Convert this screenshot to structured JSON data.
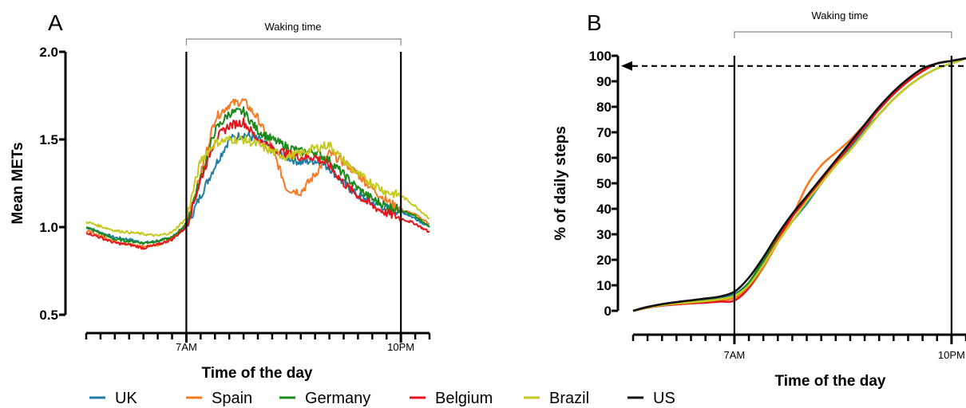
{
  "chart_data": [
    {
      "panel": "A",
      "type": "line",
      "ylabel": "Mean METs",
      "xlabel": "Time of the day",
      "ylim": [
        0.5,
        2.0
      ],
      "yticks": [
        0.5,
        1.0,
        1.5,
        2.0
      ],
      "ytick_labels": [
        "0.5",
        "1.0",
        "1.5",
        "2.0"
      ],
      "xlim": [
        0,
        24
      ],
      "xticks": [
        7,
        22
      ],
      "xtick_labels": [
        "7AM",
        "10PM"
      ],
      "vlines": [
        7,
        22
      ],
      "bracket_label": "Waking time",
      "x": [
        0,
        2,
        3,
        4,
        5,
        6,
        7,
        8,
        9,
        10,
        11,
        12,
        13,
        14,
        15,
        16,
        17,
        18,
        19,
        20,
        21,
        22,
        23,
        24
      ],
      "series": [
        {
          "name": "UK",
          "color": "#1f7fa8",
          "values": [
            1.0,
            0.94,
            0.93,
            0.91,
            0.92,
            0.94,
            1.0,
            1.18,
            1.35,
            1.5,
            1.53,
            1.5,
            1.44,
            1.4,
            1.37,
            1.38,
            1.34,
            1.25,
            1.18,
            1.14,
            1.11,
            1.09,
            1.05,
            1.0
          ]
        },
        {
          "name": "Spain",
          "color": "#f57a22",
          "values": [
            0.98,
            0.92,
            0.9,
            0.89,
            0.9,
            0.93,
            1.02,
            1.3,
            1.62,
            1.7,
            1.72,
            1.62,
            1.45,
            1.22,
            1.2,
            1.3,
            1.42,
            1.37,
            1.3,
            1.22,
            1.15,
            1.1,
            1.07,
            1.02
          ]
        },
        {
          "name": "Germany",
          "color": "#1a8a1a",
          "values": [
            1.0,
            0.93,
            0.92,
            0.91,
            0.92,
            0.94,
            1.02,
            1.28,
            1.55,
            1.65,
            1.66,
            1.55,
            1.5,
            1.46,
            1.43,
            1.43,
            1.38,
            1.3,
            1.22,
            1.16,
            1.12,
            1.1,
            1.06,
            1.0
          ]
        },
        {
          "name": "Belgium",
          "color": "#e8141b",
          "values": [
            0.97,
            0.91,
            0.9,
            0.88,
            0.9,
            0.93,
            1.0,
            1.27,
            1.5,
            1.58,
            1.6,
            1.5,
            1.45,
            1.42,
            1.4,
            1.4,
            1.35,
            1.25,
            1.18,
            1.12,
            1.08,
            1.05,
            1.02,
            0.97
          ]
        },
        {
          "name": "Brazil",
          "color": "#c5c91e",
          "values": [
            1.03,
            0.98,
            0.97,
            0.96,
            0.95,
            0.97,
            1.05,
            1.38,
            1.48,
            1.5,
            1.5,
            1.47,
            1.43,
            1.4,
            1.42,
            1.45,
            1.47,
            1.38,
            1.3,
            1.25,
            1.2,
            1.18,
            1.12,
            1.05
          ]
        }
      ]
    },
    {
      "panel": "B",
      "type": "line",
      "ylabel": "% of daily steps",
      "xlabel": "Time of the day",
      "ylim": [
        0,
        100
      ],
      "yticks": [
        0,
        10,
        20,
        30,
        40,
        50,
        60,
        70,
        80,
        90,
        100
      ],
      "ytick_labels": [
        "0",
        "10",
        "20",
        "30",
        "40",
        "50",
        "60",
        "70",
        "80",
        "90",
        "100"
      ],
      "xlim": [
        0,
        23
      ],
      "xticks": [
        7,
        22
      ],
      "xtick_labels": [
        "7AM",
        "10PM"
      ],
      "vlines": [
        7,
        22
      ],
      "bracket_label": "Waking time",
      "dashed_arrow_y": 96,
      "x": [
        0,
        1,
        2,
        3,
        4,
        5,
        6,
        7,
        8,
        9,
        10,
        11,
        12,
        13,
        14,
        15,
        16,
        17,
        18,
        19,
        20,
        21,
        22,
        23
      ],
      "series": [
        {
          "name": "UK",
          "color": "#1f7fa8",
          "values": [
            0,
            1.5,
            2.5,
            3.3,
            4.0,
            4.6,
            5.3,
            6.5,
            11,
            19,
            27,
            35,
            42,
            50,
            57,
            64,
            71,
            77,
            83,
            88,
            92,
            95,
            97,
            99
          ]
        },
        {
          "name": "Spain",
          "color": "#f57a22",
          "values": [
            0,
            1.3,
            2.2,
            2.8,
            3.2,
            3.6,
            4.2,
            5.0,
            9,
            17,
            27,
            37,
            49,
            57,
            62,
            67,
            73,
            79,
            85,
            90,
            94,
            97,
            98,
            99
          ]
        },
        {
          "name": "Germany",
          "color": "#1a8a1a",
          "values": [
            0,
            1.4,
            2.3,
            2.9,
            3.4,
            3.9,
            4.6,
            6.0,
            11,
            20,
            29,
            37,
            44,
            51,
            58,
            65,
            72,
            79,
            85,
            90,
            94,
            97,
            98,
            99
          ]
        },
        {
          "name": "Belgium",
          "color": "#e8141b",
          "values": [
            0,
            1.2,
            2.0,
            2.5,
            2.9,
            3.2,
            3.6,
            4.0,
            9,
            18,
            28,
            37,
            44,
            51,
            58,
            65,
            72,
            79,
            85,
            90,
            94,
            97,
            98,
            99
          ]
        },
        {
          "name": "Brazil",
          "color": "#c5c91e",
          "values": [
            0,
            1.3,
            2.2,
            2.8,
            3.3,
            3.8,
            4.5,
            5.8,
            10,
            18,
            27,
            35,
            43,
            50,
            57,
            63,
            70,
            77,
            83,
            88,
            92,
            95,
            97,
            99
          ]
        },
        {
          "name": "US",
          "color": "#111111",
          "values": [
            0,
            1.5,
            2.6,
            3.4,
            4.1,
            4.8,
            5.6,
            7.5,
            13,
            21,
            30,
            38,
            45,
            52,
            59,
            66,
            73,
            80,
            86,
            91,
            95,
            97,
            98,
            99
          ]
        }
      ]
    }
  ],
  "legend": [
    {
      "name": "UK",
      "color": "#1f7fa8"
    },
    {
      "name": "Spain",
      "color": "#f57a22"
    },
    {
      "name": "Germany",
      "color": "#1a8a1a"
    },
    {
      "name": "Belgium",
      "color": "#e8141b"
    },
    {
      "name": "Brazil",
      "color": "#c5c91e"
    },
    {
      "name": "US",
      "color": "#111111"
    }
  ]
}
